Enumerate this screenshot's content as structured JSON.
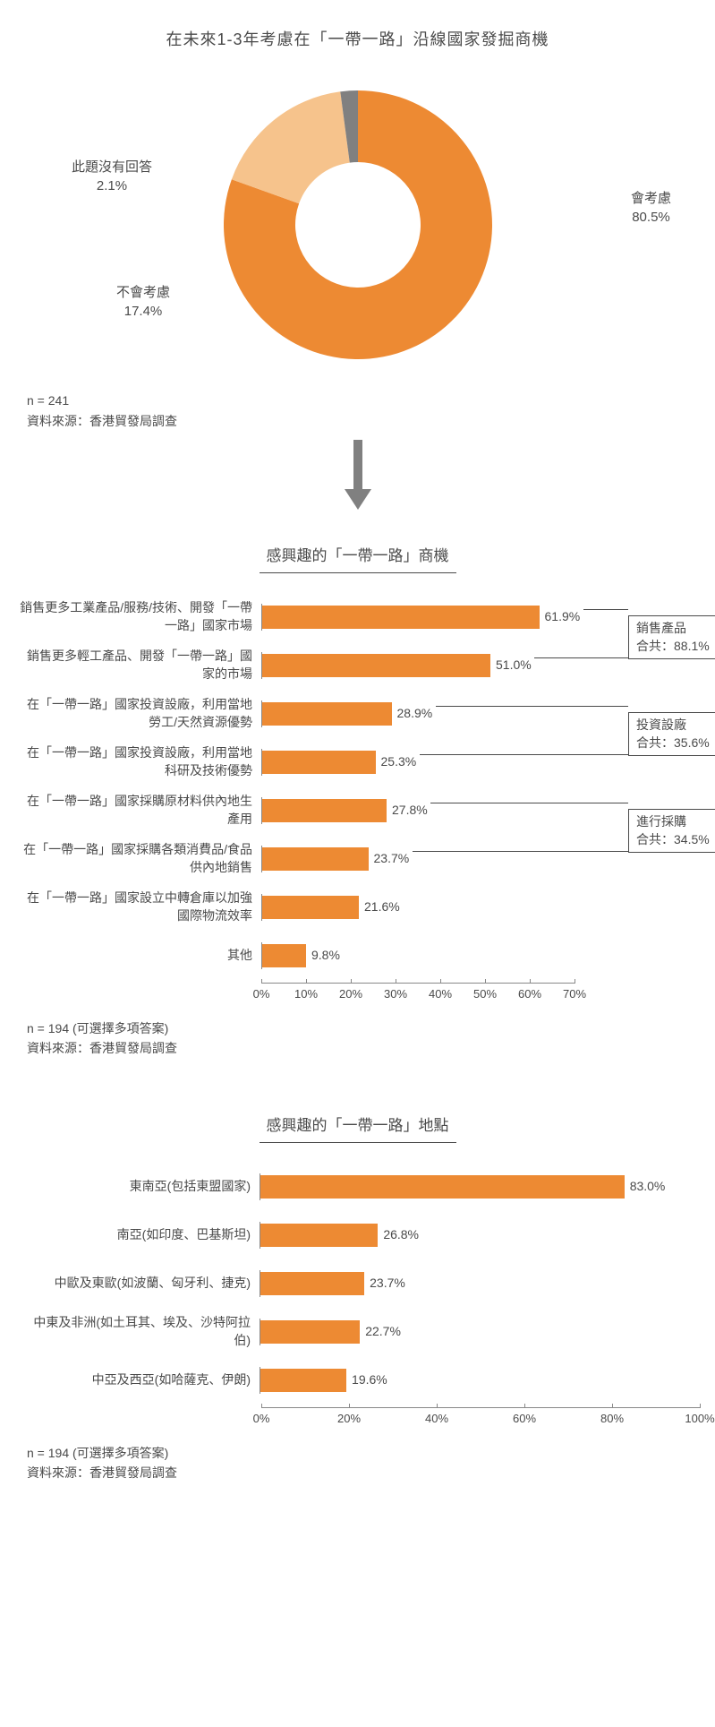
{
  "donut": {
    "title": "在未來1-3年考慮在「一帶一路」沿線國家發掘商機",
    "slices": [
      {
        "label": "會考慮",
        "value": 80.5,
        "value_text": "80.5%",
        "color": "#ed8a33"
      },
      {
        "label": "不會考慮",
        "value": 17.4,
        "value_text": "17.4%",
        "color": "#f6c38c"
      },
      {
        "label": "此題沒有回答",
        "value": 2.1,
        "value_text": "2.1%",
        "color": "#808080"
      }
    ],
    "inner_radius": 70,
    "outer_radius": 150,
    "n_text": "n = 241",
    "source": "資料來源：香港貿發局調查"
  },
  "bar1": {
    "title": "感興趣的「一帶一路」商機",
    "items": [
      {
        "label": "銷售更多工業產品/服務/技術、開發「一帶一路」國家市場",
        "value": 61.9,
        "value_text": "61.9%"
      },
      {
        "label": "銷售更多輕工產品、開發「一帶一路」國家的市場",
        "value": 51.0,
        "value_text": "51.0%"
      },
      {
        "label": "在「一帶一路」國家投資設廠，利用當地勞工/天然資源優勢",
        "value": 28.9,
        "value_text": "28.9%"
      },
      {
        "label": "在「一帶一路」國家投資設廠，利用當地科研及技術優勢",
        "value": 25.3,
        "value_text": "25.3%"
      },
      {
        "label": "在「一帶一路」國家採購原材料供內地生產用",
        "value": 27.8,
        "value_text": "27.8%"
      },
      {
        "label": "在「一帶一路」國家採購各類消費品/食品供內地銷售",
        "value": 23.7,
        "value_text": "23.7%"
      },
      {
        "label": "在「一帶一路」國家設立中轉倉庫以加強國際物流效率",
        "value": 21.6,
        "value_text": "21.6%"
      },
      {
        "label": "其他",
        "value": 9.8,
        "value_text": "9.8%"
      }
    ],
    "x_max": 70,
    "x_ticks": [
      0,
      10,
      20,
      30,
      40,
      50,
      60,
      70
    ],
    "annotations": [
      {
        "line1": "銷售產品",
        "line2": "合共：88.1%"
      },
      {
        "line1": "投資設廠",
        "line2": "合共：35.6%"
      },
      {
        "line1": "進行採購",
        "line2": "合共：34.5%"
      }
    ],
    "n_text": "n = 194 (可選擇多項答案)",
    "source": "資料來源：香港貿發局調查",
    "bar_color": "#ed8a33"
  },
  "bar2": {
    "title": "感興趣的「一帶一路」地點",
    "items": [
      {
        "label": "東南亞(包括東盟國家)",
        "value": 83.0,
        "value_text": "83.0%"
      },
      {
        "label": "南亞(如印度、巴基斯坦)",
        "value": 26.8,
        "value_text": "26.8%"
      },
      {
        "label": "中歐及東歐(如波蘭、匈牙利、捷克)",
        "value": 23.7,
        "value_text": "23.7%"
      },
      {
        "label": "中東及非洲(如土耳其、埃及、沙特阿拉伯)",
        "value": 22.7,
        "value_text": "22.7%"
      },
      {
        "label": "中亞及西亞(如哈薩克、伊朗)",
        "value": 19.6,
        "value_text": "19.6%"
      }
    ],
    "x_max": 100,
    "x_ticks": [
      0,
      20,
      40,
      60,
      80,
      100
    ],
    "n_text": "n = 194 (可選擇多項答案)",
    "source": "資料來源：香港貿發局調查",
    "bar_color": "#ed8a33"
  },
  "arrow_color": "#808080"
}
